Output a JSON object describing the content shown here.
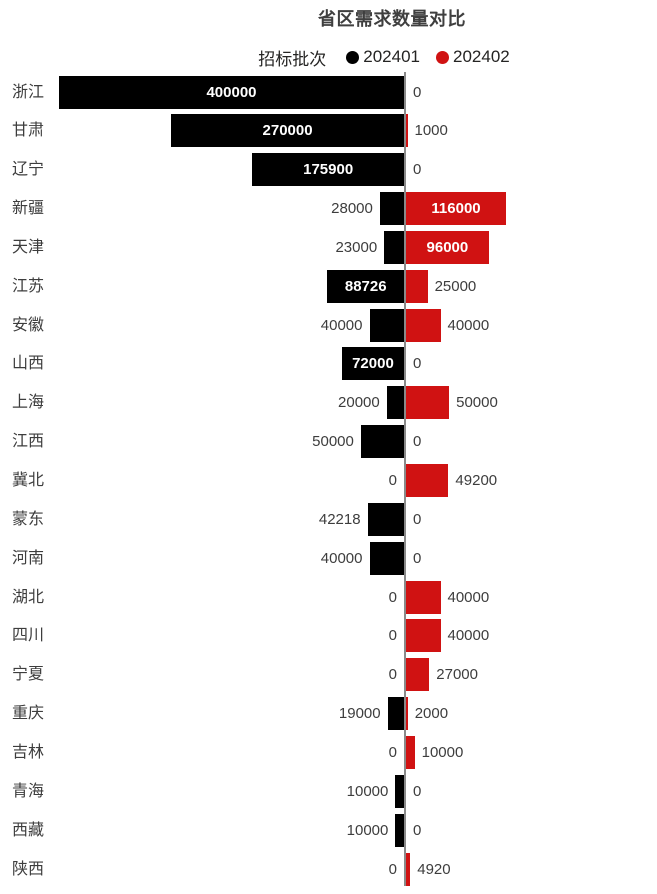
{
  "title": "省区需求数量对比",
  "legend": {
    "title": "招标批次",
    "entries": [
      {
        "label": "202401",
        "color": "#000000"
      },
      {
        "label": "202402",
        "color": "#d01212"
      }
    ]
  },
  "colors": {
    "series1": "#000000",
    "series2": "#d01212",
    "axis_line": "#8a8a8a",
    "outside_label_text": "#3d3d3d",
    "inside_label_text": "#ffffff",
    "title_text": "#3f3f3f",
    "background": "#ffffff"
  },
  "chart_data": {
    "type": "bar",
    "orientation": "horizontal-diverging",
    "title": "省区需求数量对比",
    "legend_title": "招标批次",
    "legend_position": "top-center",
    "grid": false,
    "zero_axis_line": true,
    "value_labels": "integer, inside bar when bar is wide enough, otherwise outside next to bar",
    "scale_max": 400000,
    "categories": [
      "浙江",
      "甘肃",
      "辽宁",
      "新疆",
      "天津",
      "江苏",
      "安徽",
      "山西",
      "上海",
      "江西",
      "冀北",
      "蒙东",
      "河南",
      "湖北",
      "四川",
      "宁夏",
      "重庆",
      "吉林",
      "青海",
      "西藏",
      "陕西"
    ],
    "series": [
      {
        "name": "202401",
        "color": "#000000",
        "direction": "left",
        "values": [
          400000,
          270000,
          175900,
          28000,
          23000,
          88726,
          40000,
          72000,
          20000,
          50000,
          0,
          42218,
          40000,
          0,
          0,
          0,
          19000,
          0,
          10000,
          10000,
          0
        ]
      },
      {
        "name": "202402",
        "color": "#d01212",
        "direction": "right",
        "values": [
          0,
          1000,
          0,
          116000,
          96000,
          25000,
          40000,
          0,
          50000,
          0,
          49200,
          0,
          0,
          40000,
          40000,
          27000,
          2000,
          10000,
          0,
          0,
          4920
        ]
      }
    ]
  }
}
